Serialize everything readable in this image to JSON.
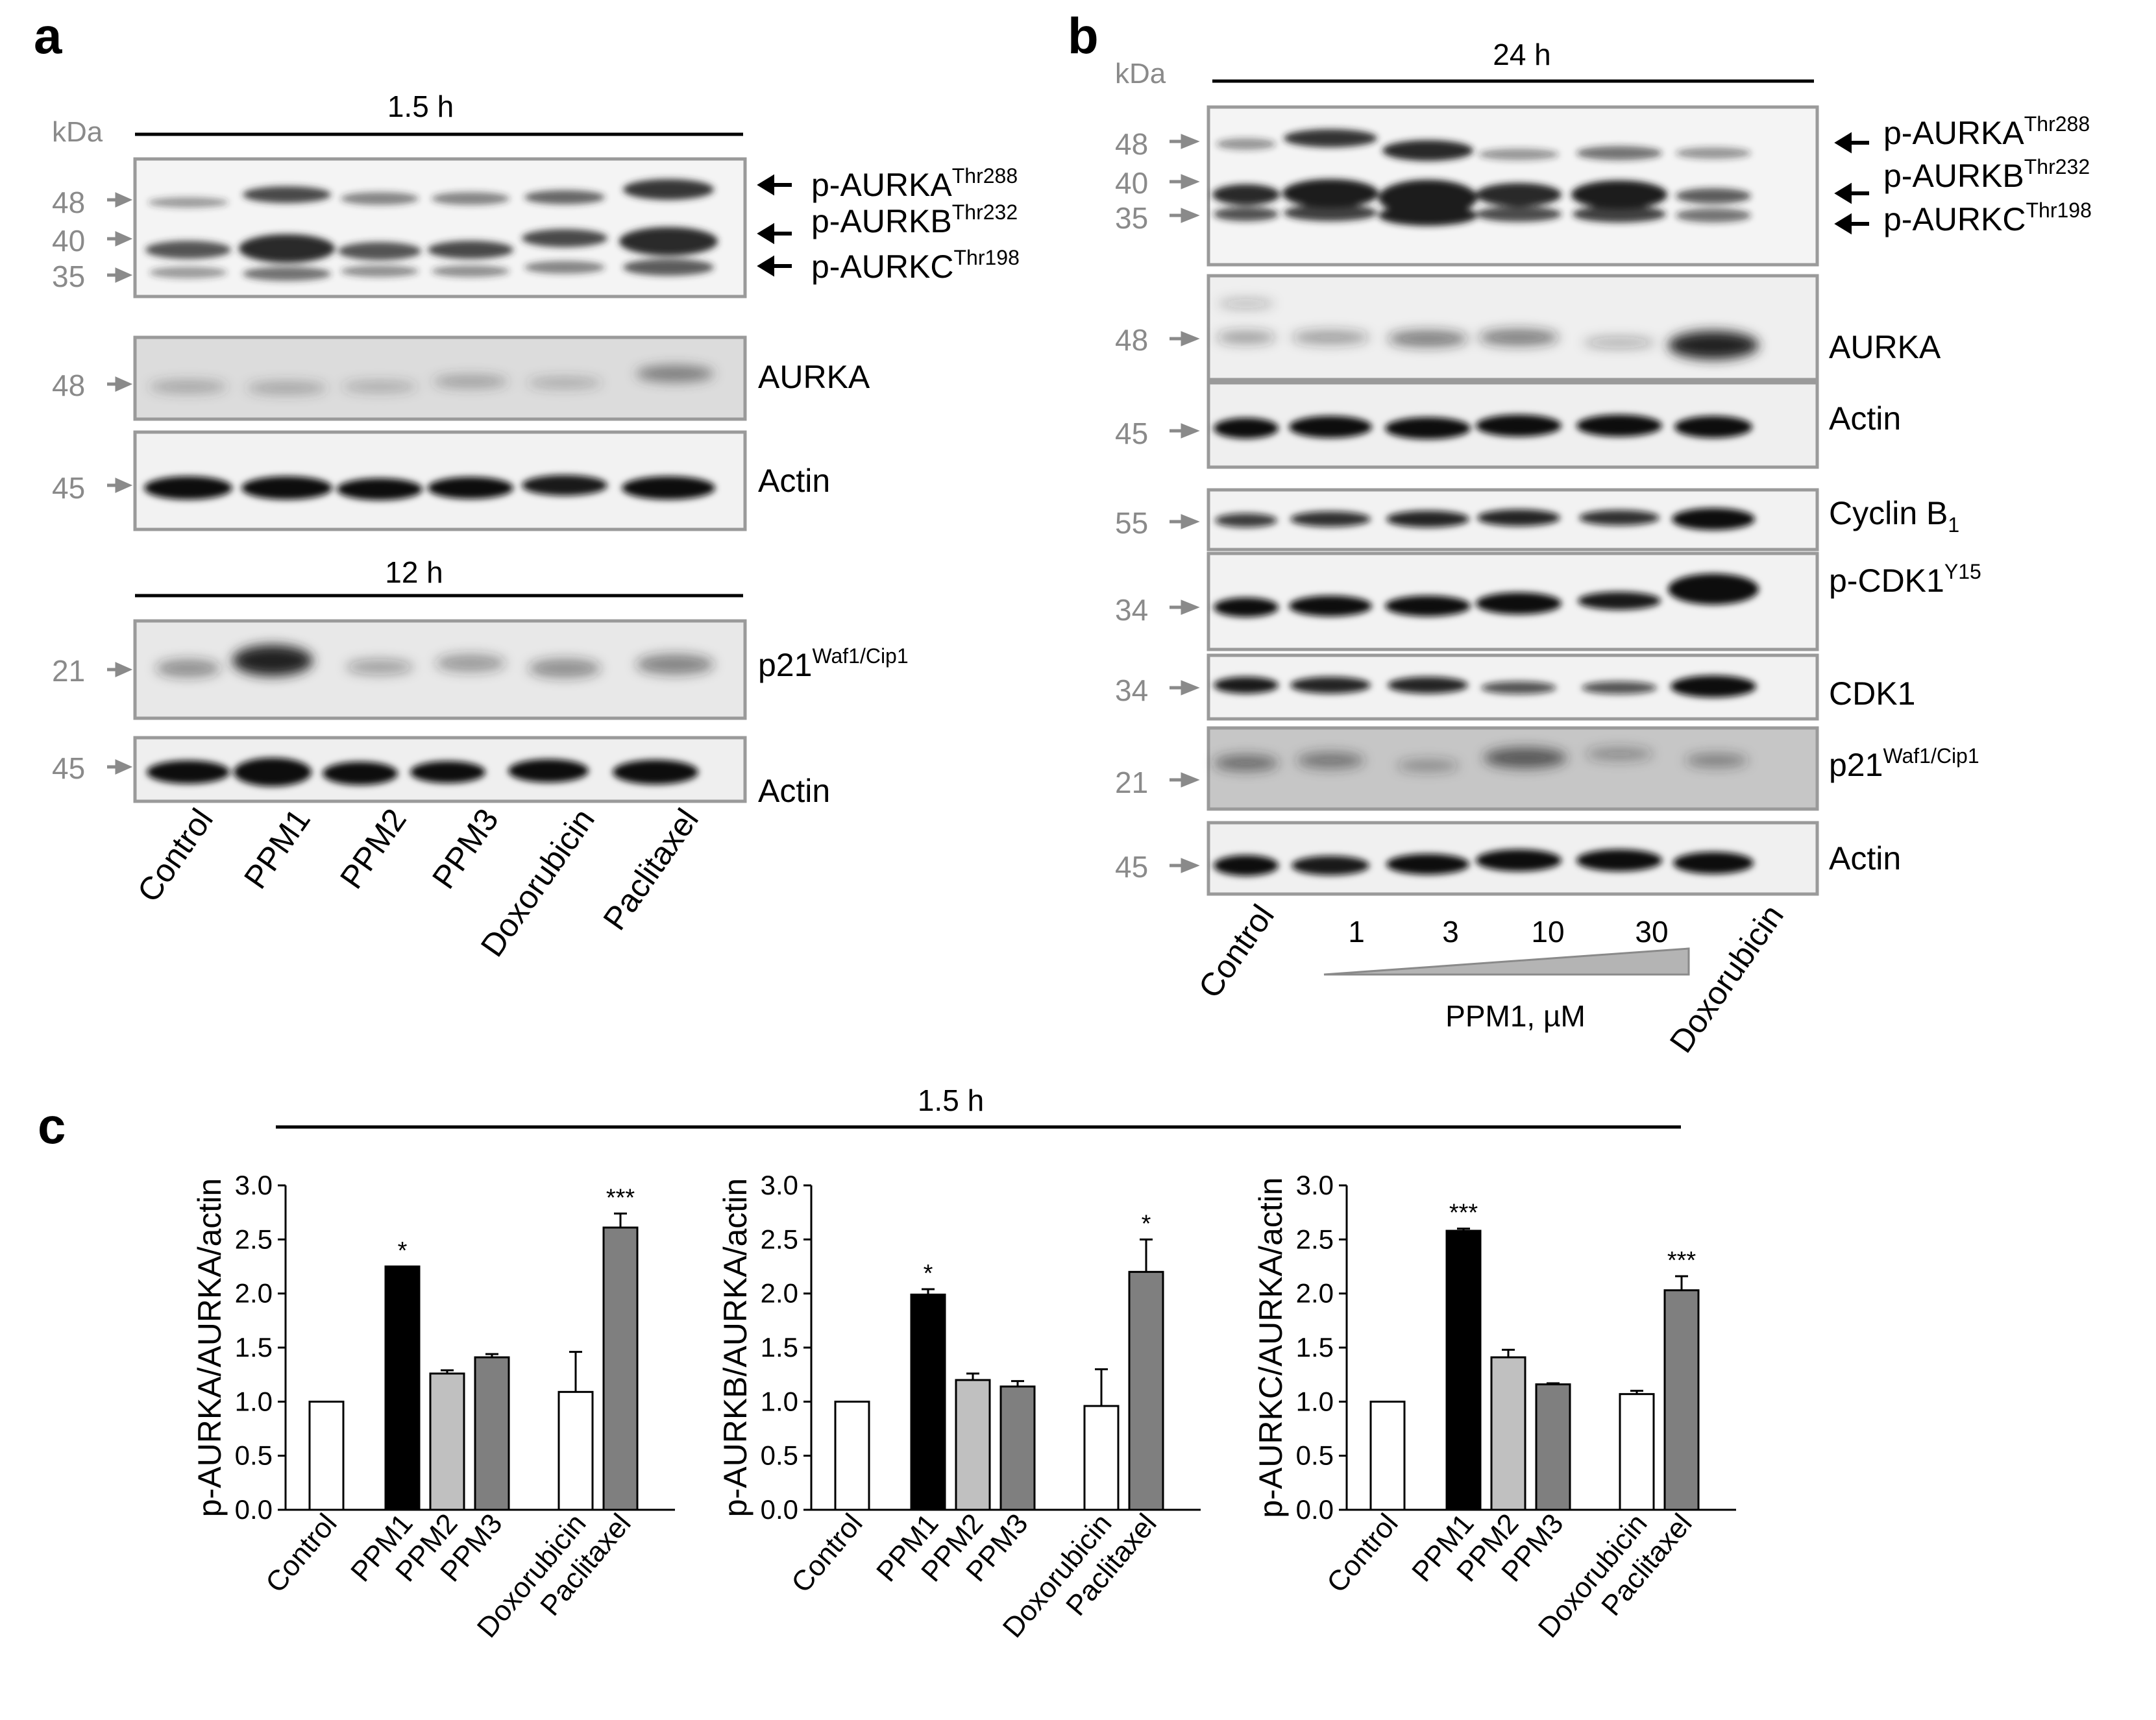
{
  "panels": {
    "a": {
      "letter": "a",
      "kda_label": "kDa",
      "time_top": "1.5 h",
      "time_bottom": "12 h",
      "lanes": [
        "Control",
        "PPM1",
        "PPM2",
        "PPM3",
        "Doxorubicin",
        "Paclitaxel"
      ],
      "blots": [
        {
          "labels": [
            {
              "main": "p-AURKA",
              "sup": "Thr288"
            },
            {
              "main": "p-AURKB",
              "sup": "Thr232"
            },
            {
              "main": "p-AURKC",
              "sup": "Thr198"
            }
          ],
          "markers": [
            "48",
            "40",
            "35"
          ]
        },
        {
          "labels": [
            {
              "main": "AURKA",
              "sup": ""
            }
          ],
          "markers": [
            "48"
          ]
        },
        {
          "labels": [
            {
              "main": "Actin",
              "sup": ""
            }
          ],
          "markers": [
            "45"
          ]
        },
        {
          "labels": [
            {
              "main": "p21",
              "sup": "Waf1/Cip1"
            }
          ],
          "markers": [
            "21"
          ]
        },
        {
          "labels": [
            {
              "main": "Actin",
              "sup": ""
            }
          ],
          "markers": [
            "45"
          ]
        }
      ]
    },
    "b": {
      "letter": "b",
      "kda_label": "kDa",
      "time_top": "24 h",
      "lanes": [
        "Control",
        "1",
        "3",
        "10",
        "30",
        "Doxorubicin"
      ],
      "gradient_label": "PPM1, µM",
      "blots": [
        {
          "labels": [
            {
              "main": "p-AURKA",
              "sup": "Thr288"
            },
            {
              "main": "p-AURKB",
              "sup": "Thr232"
            },
            {
              "main": "p-AURKC",
              "sup": "Thr198"
            }
          ],
          "markers": [
            "48",
            "40",
            "35"
          ]
        },
        {
          "labels": [
            {
              "main": "AURKA",
              "sup": ""
            }
          ],
          "markers": [
            "48"
          ]
        },
        {
          "labels": [
            {
              "main": "Actin",
              "sup": ""
            }
          ],
          "markers": [
            "45"
          ]
        },
        {
          "labels": [
            {
              "main": "Cyclin B",
              "sub": "1"
            }
          ],
          "markers": [
            "55"
          ]
        },
        {
          "labels": [
            {
              "main": "p-CDK1",
              "sup": "Y15"
            }
          ],
          "markers": [
            "34"
          ]
        },
        {
          "labels": [
            {
              "main": "CDK1",
              "sup": ""
            }
          ],
          "markers": [
            "34"
          ]
        },
        {
          "labels": [
            {
              "main": "p21",
              "sup": "Waf1/Cip1"
            }
          ],
          "markers": [
            "21"
          ]
        },
        {
          "labels": [
            {
              "main": "Actin",
              "sup": ""
            }
          ],
          "markers": [
            "45"
          ]
        }
      ]
    },
    "c": {
      "letter": "c",
      "time": "1.5 h"
    }
  },
  "chart_data": [
    {
      "type": "bar",
      "categories": [
        "Control",
        "PPM1",
        "PPM2",
        "PPM3",
        "Doxorubicin",
        "Paclitaxel"
      ],
      "values": [
        1.0,
        2.25,
        1.26,
        1.41,
        1.09,
        2.61
      ],
      "errors": [
        0,
        0,
        0.03,
        0.03,
        0.37,
        0.13
      ],
      "significance": [
        "",
        "*",
        "",
        "",
        "",
        "***"
      ],
      "fill_colors": [
        "#ffffff",
        "#000000",
        "#c0c0c0",
        "#7f7f7f",
        "#ffffff",
        "#7f7f7f"
      ],
      "ylabel": "p-AURKA/AURKA/actin",
      "ylim": [
        0,
        3.0
      ],
      "yticks": [
        "0.0",
        "0.5",
        "1.0",
        "1.5",
        "2.0",
        "2.5",
        "3.0"
      ]
    },
    {
      "type": "bar",
      "categories": [
        "Control",
        "PPM1",
        "PPM2",
        "PPM3",
        "Doxorubicin",
        "Paclitaxel"
      ],
      "values": [
        1.0,
        1.99,
        1.2,
        1.14,
        0.96,
        2.2
      ],
      "errors": [
        0,
        0.05,
        0.06,
        0.05,
        0.34,
        0.3
      ],
      "significance": [
        "",
        "*",
        "",
        "",
        "",
        "*"
      ],
      "fill_colors": [
        "#ffffff",
        "#000000",
        "#c0c0c0",
        "#7f7f7f",
        "#ffffff",
        "#7f7f7f"
      ],
      "ylabel": "p-AURKB/AURKA/actin",
      "ylim": [
        0,
        3.0
      ],
      "yticks": [
        "0.0",
        "0.5",
        "1.0",
        "1.5",
        "2.0",
        "2.5",
        "3.0"
      ]
    },
    {
      "type": "bar",
      "categories": [
        "Control",
        "PPM1",
        "PPM2",
        "PPM3",
        "Doxorubicin",
        "Paclitaxel"
      ],
      "values": [
        1.0,
        2.58,
        1.41,
        1.16,
        1.07,
        2.03
      ],
      "errors": [
        0,
        0.02,
        0.07,
        0.01,
        0.03,
        0.13
      ],
      "significance": [
        "",
        "***",
        "",
        "",
        "",
        "***"
      ],
      "fill_colors": [
        "#ffffff",
        "#000000",
        "#c0c0c0",
        "#7f7f7f",
        "#ffffff",
        "#7f7f7f"
      ],
      "ylabel": "p-AURKC/AURKA/actin",
      "ylim": [
        0,
        3.0
      ],
      "yticks": [
        "0.0",
        "0.5",
        "1.0",
        "1.5",
        "2.0",
        "2.5",
        "3.0"
      ]
    }
  ]
}
